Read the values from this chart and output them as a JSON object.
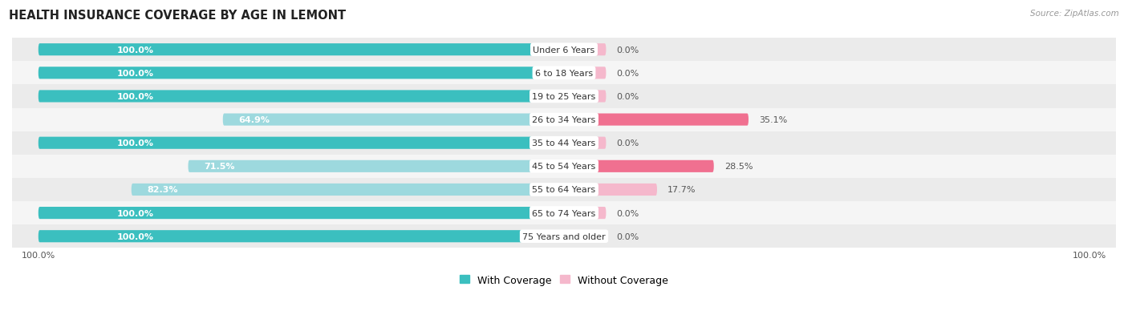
{
  "title": "HEALTH INSURANCE COVERAGE BY AGE IN LEMONT",
  "source": "Source: ZipAtlas.com",
  "categories": [
    "Under 6 Years",
    "6 to 18 Years",
    "19 to 25 Years",
    "26 to 34 Years",
    "35 to 44 Years",
    "45 to 54 Years",
    "55 to 64 Years",
    "65 to 74 Years",
    "75 Years and older"
  ],
  "with_coverage": [
    100.0,
    100.0,
    100.0,
    64.9,
    100.0,
    71.5,
    82.3,
    100.0,
    100.0
  ],
  "without_coverage": [
    0.0,
    0.0,
    0.0,
    35.1,
    0.0,
    28.5,
    17.7,
    0.0,
    0.0
  ],
  "color_with_full": "#3bbfbf",
  "color_with_partial": "#9dd9de",
  "color_without_large": "#f07090",
  "color_without_small": "#f5b8cc",
  "bg_even": "#ebebeb",
  "bg_odd": "#f5f5f5",
  "bar_height": 0.52,
  "scale": 100,
  "legend_labels": [
    "With Coverage",
    "Without Coverage"
  ],
  "xlim_left": -105,
  "xlim_right": 105,
  "zero_stub": 8
}
